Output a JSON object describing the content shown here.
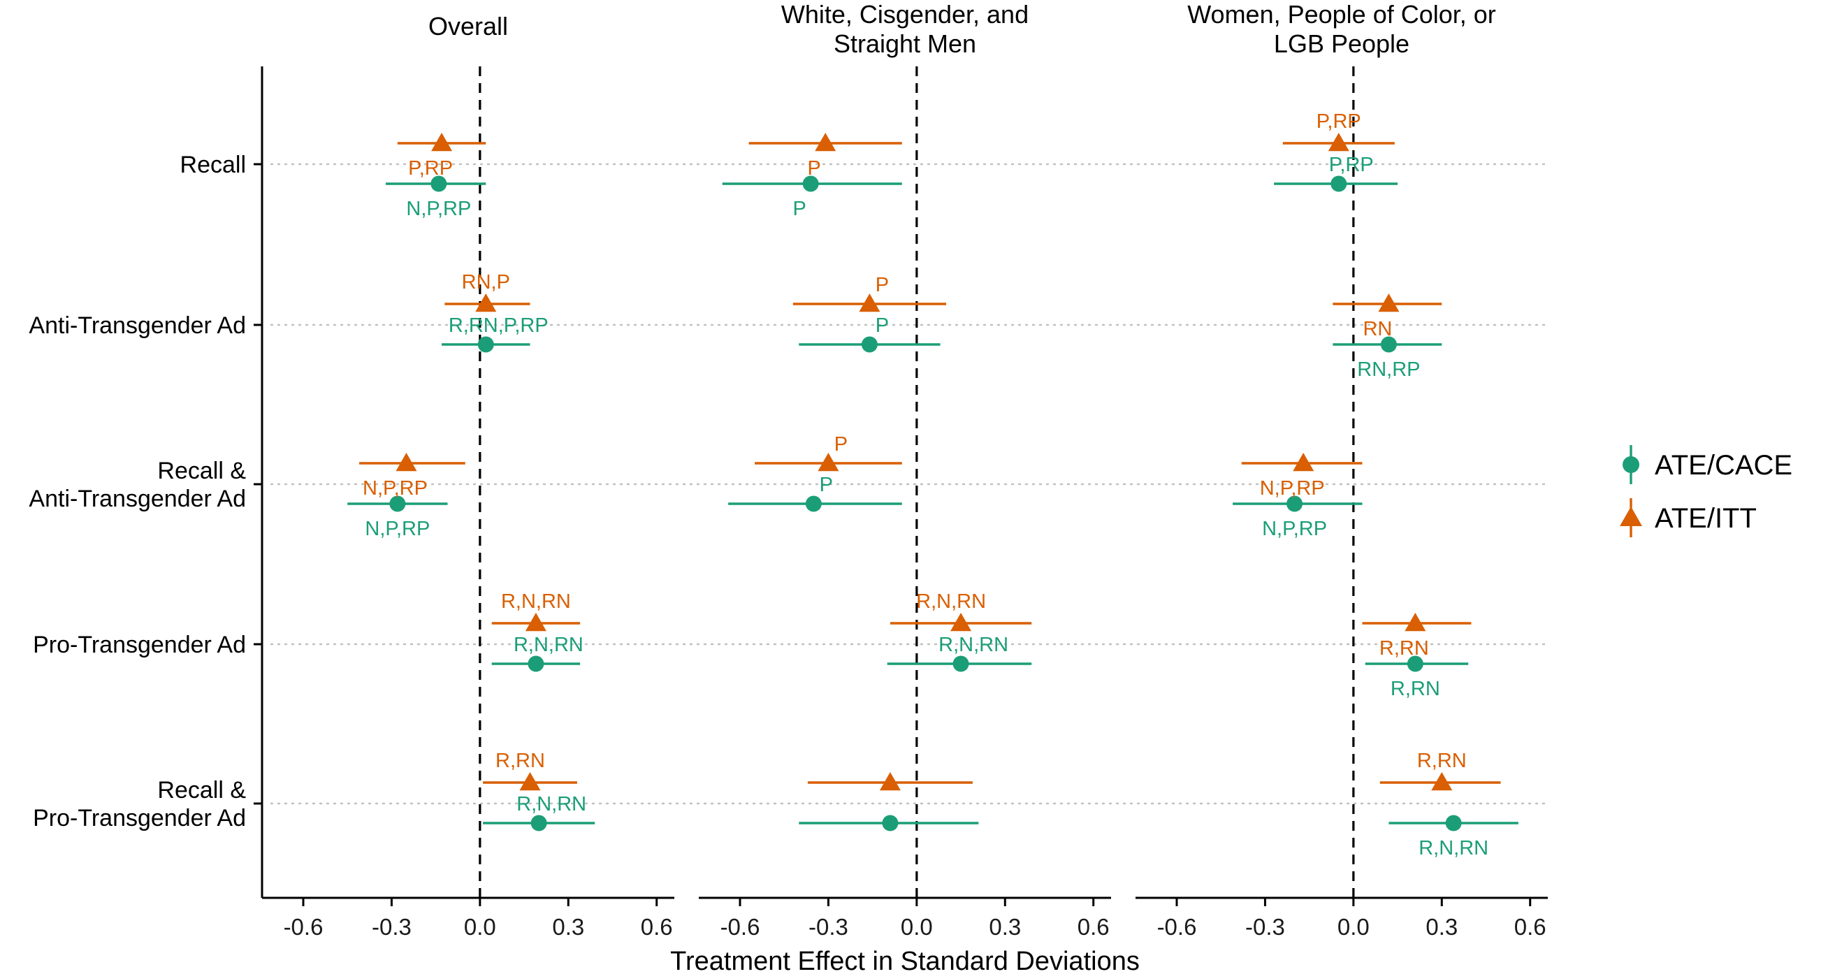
{
  "chart_data": {
    "type": "scatter",
    "subtype": "point-range (coefficient plot)",
    "xlabel": "Treatment Effect in Standard Deviations",
    "xlim": [
      -0.74,
      0.66
    ],
    "xticks": [
      -0.6,
      -0.3,
      0.0,
      0.3,
      0.6
    ],
    "xtick_labels": [
      "-0.6",
      "-0.3",
      "0.0",
      "0.3",
      "0.6"
    ],
    "zero_line": 0,
    "rows": [
      {
        "id": "recall",
        "label_lines": [
          "Recall"
        ]
      },
      {
        "id": "anti",
        "label_lines": [
          "Anti-Transgender Ad"
        ]
      },
      {
        "id": "recall_anti",
        "label_lines": [
          "Recall &",
          "Anti-Transgender Ad"
        ]
      },
      {
        "id": "pro",
        "label_lines": [
          "Pro-Transgender Ad"
        ]
      },
      {
        "id": "recall_pro",
        "label_lines": [
          "Recall &",
          "Pro-Transgender Ad"
        ]
      }
    ],
    "legend": {
      "position": "right",
      "entries": [
        {
          "name": "ATE/CACE",
          "shape": "circle",
          "color": "#1b9e77"
        },
        {
          "name": "ATE/ITT",
          "shape": "triangle",
          "color": "#d95f02"
        }
      ]
    },
    "series_colors": {
      "ATE/CACE": "#1b9e77",
      "ATE/ITT": "#d95f02"
    },
    "panels": [
      {
        "title_lines": [
          "Overall"
        ],
        "estimates": {
          "ATE/ITT": [
            {
              "row": "recall",
              "est": -0.13,
              "low": -0.28,
              "high": 0.02,
              "label": "P,RP",
              "label_pos": "below-left"
            },
            {
              "row": "anti",
              "est": 0.02,
              "low": -0.12,
              "high": 0.17,
              "label": "RN,P",
              "label_pos": "above"
            },
            {
              "row": "recall_anti",
              "est": -0.25,
              "low": -0.41,
              "high": -0.05,
              "label": "N,P,RP",
              "label_pos": "below-left"
            },
            {
              "row": "pro",
              "est": 0.19,
              "low": 0.04,
              "high": 0.34,
              "label": "R,N,RN",
              "label_pos": "above"
            },
            {
              "row": "recall_pro",
              "est": 0.17,
              "low": 0.01,
              "high": 0.33,
              "label": "R,RN",
              "label_pos": "above-left"
            }
          ],
          "ATE/CACE": [
            {
              "row": "recall",
              "est": -0.14,
              "low": -0.32,
              "high": 0.02,
              "label": "N,P,RP",
              "label_pos": "below"
            },
            {
              "row": "anti",
              "est": 0.02,
              "low": -0.13,
              "high": 0.17,
              "label": "R,RN,P,RP",
              "label_pos": "above-right"
            },
            {
              "row": "recall_anti",
              "est": -0.28,
              "low": -0.45,
              "high": -0.11,
              "label": "N,P,RP",
              "label_pos": "below"
            },
            {
              "row": "pro",
              "est": 0.19,
              "low": 0.04,
              "high": 0.34,
              "label": "R,N,RN",
              "label_pos": "above-right"
            },
            {
              "row": "recall_pro",
              "est": 0.2,
              "low": 0.01,
              "high": 0.39,
              "label": "R,N,RN",
              "label_pos": "above-right"
            }
          ]
        }
      },
      {
        "title_lines": [
          "White, Cisgender, and",
          "Straight Men"
        ],
        "estimates": {
          "ATE/ITT": [
            {
              "row": "recall",
              "est": -0.31,
              "low": -0.57,
              "high": -0.05,
              "label": "P",
              "label_pos": "below-left"
            },
            {
              "row": "anti",
              "est": -0.16,
              "low": -0.42,
              "high": 0.1,
              "label": "P",
              "label_pos": "above-right"
            },
            {
              "row": "recall_anti",
              "est": -0.3,
              "low": -0.55,
              "high": -0.05,
              "label": "P",
              "label_pos": "above-right"
            },
            {
              "row": "pro",
              "est": 0.15,
              "low": -0.09,
              "high": 0.39,
              "label": "R,N,RN",
              "label_pos": "above-left"
            },
            {
              "row": "recall_pro",
              "est": -0.09,
              "low": -0.37,
              "high": 0.19,
              "label": "",
              "label_pos": "none"
            }
          ],
          "ATE/CACE": [
            {
              "row": "recall",
              "est": -0.36,
              "low": -0.66,
              "high": -0.05,
              "label": "P",
              "label_pos": "below-left"
            },
            {
              "row": "anti",
              "est": -0.16,
              "low": -0.4,
              "high": 0.08,
              "label": "P",
              "label_pos": "above-right"
            },
            {
              "row": "recall_anti",
              "est": -0.35,
              "low": -0.64,
              "high": -0.05,
              "label": "P",
              "label_pos": "above-right"
            },
            {
              "row": "pro",
              "est": 0.15,
              "low": -0.1,
              "high": 0.39,
              "label": "R,N,RN",
              "label_pos": "above-right"
            },
            {
              "row": "recall_pro",
              "est": -0.09,
              "low": -0.4,
              "high": 0.21,
              "label": "",
              "label_pos": "none"
            }
          ]
        }
      },
      {
        "title_lines": [
          "Women, People of Color, or",
          "LGB People"
        ],
        "estimates": {
          "ATE/ITT": [
            {
              "row": "recall",
              "est": -0.05,
              "low": -0.24,
              "high": 0.14,
              "label": "P,RP",
              "label_pos": "above"
            },
            {
              "row": "anti",
              "est": 0.12,
              "low": -0.07,
              "high": 0.3,
              "label": "RN",
              "label_pos": "below-left"
            },
            {
              "row": "recall_anti",
              "est": -0.17,
              "low": -0.38,
              "high": 0.03,
              "label": "N,P,RP",
              "label_pos": "below-left"
            },
            {
              "row": "pro",
              "est": 0.21,
              "low": 0.03,
              "high": 0.4,
              "label": "R,RN",
              "label_pos": "below-left"
            },
            {
              "row": "recall_pro",
              "est": 0.3,
              "low": 0.09,
              "high": 0.5,
              "label": "R,RN",
              "label_pos": "above"
            }
          ],
          "ATE/CACE": [
            {
              "row": "recall",
              "est": -0.05,
              "low": -0.27,
              "high": 0.15,
              "label": "P,RP",
              "label_pos": "above-right"
            },
            {
              "row": "anti",
              "est": 0.12,
              "low": -0.07,
              "high": 0.3,
              "label": "RN,RP",
              "label_pos": "below"
            },
            {
              "row": "recall_anti",
              "est": -0.2,
              "low": -0.41,
              "high": 0.03,
              "label": "N,P,RP",
              "label_pos": "below"
            },
            {
              "row": "pro",
              "est": 0.21,
              "low": 0.04,
              "high": 0.39,
              "label": "R,RN",
              "label_pos": "below"
            },
            {
              "row": "recall_pro",
              "est": 0.34,
              "low": 0.12,
              "high": 0.56,
              "label": "R,N,RN",
              "label_pos": "below"
            }
          ]
        }
      }
    ]
  }
}
